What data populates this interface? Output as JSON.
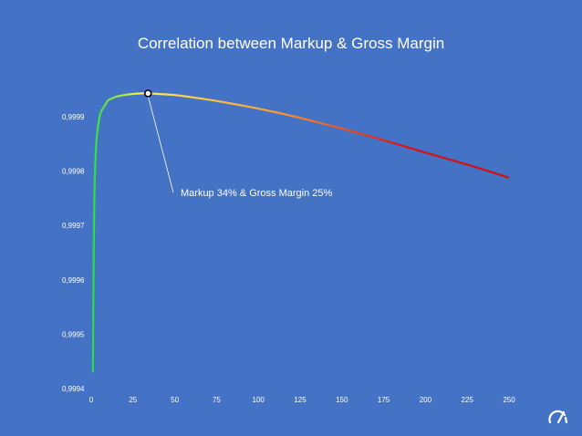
{
  "chart_data": {
    "type": "line",
    "title": "Correlation between Markup & Gross Margin",
    "xlabel": "",
    "ylabel": "",
    "xlim": [
      0,
      250
    ],
    "ylim": [
      0.9994,
      0.99995
    ],
    "x_ticks": [
      "0",
      "25",
      "50",
      "75",
      "100",
      "125",
      "150",
      "175",
      "200",
      "225",
      "250"
    ],
    "y_ticks": [
      "0,9994",
      "0,9995",
      "0,9996",
      "0,9997",
      "0,9998",
      "0,9999"
    ],
    "grid": false,
    "legend": "none",
    "series": [
      {
        "x": [
          1,
          1.5,
          2,
          3,
          4,
          5,
          6,
          8,
          10,
          12,
          15,
          20,
          25,
          30,
          34,
          40,
          50,
          60,
          75,
          100,
          125,
          150,
          175,
          200,
          225,
          250
        ],
        "y": [
          0.99943,
          0.99966,
          0.99977,
          0.99985,
          0.99988,
          0.9999,
          0.99991,
          0.99992,
          0.99993,
          0.999933,
          0.999937,
          0.99994,
          0.999942,
          0.999943,
          0.999943,
          0.999942,
          0.99994,
          0.999936,
          0.999929,
          0.999915,
          0.999898,
          0.999878,
          0.999857,
          0.999834,
          0.999812,
          0.999788
        ],
        "color_stops": [
          "#22dd44",
          "#ffee55",
          "#ff9933",
          "#dd1111"
        ]
      }
    ],
    "highlight": {
      "x": 34,
      "y": 0.999943,
      "label": "Markup 34% & Gross Margin 25%"
    }
  },
  "colors": {
    "background": "#4472c4",
    "text": "#ffffff"
  },
  "icons": {
    "corner_logo": "speedometer-icon"
  }
}
